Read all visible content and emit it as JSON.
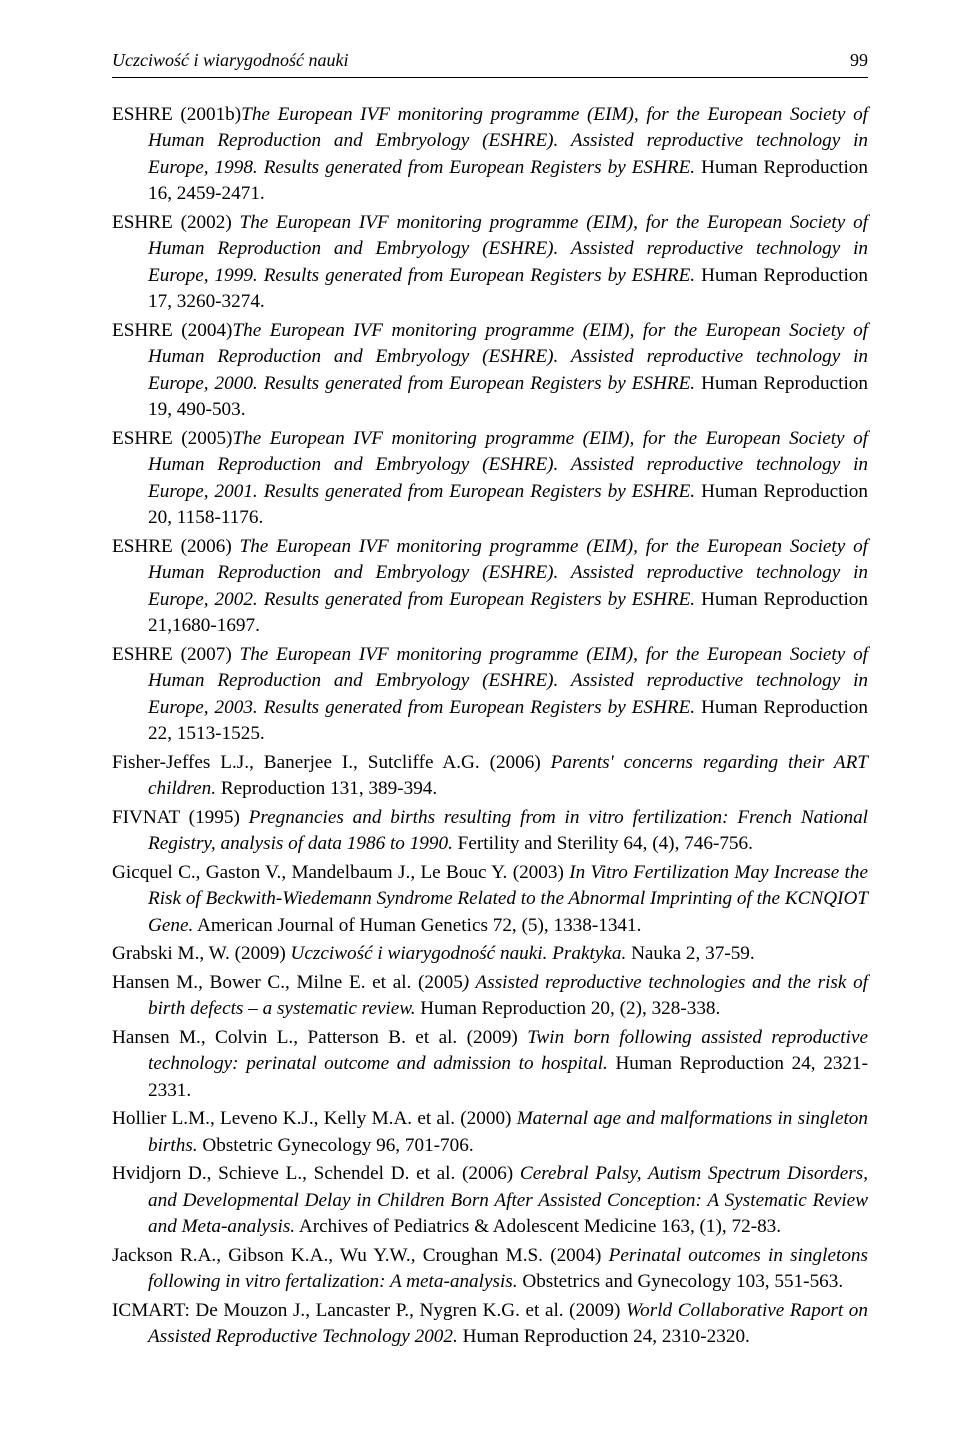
{
  "header": {
    "running_title": "Uczciwość i wiarygodność nauki",
    "page_number": "99"
  },
  "references": [
    {
      "html": "ESHRE (2001b)<span class='it'>The European IVF monitoring programme (EIM), for the European Society of Human Reproduction and Embryology (ESHRE). Assisted reproductive technology in Europe, 1998. Results generated from European Registers by ESHRE.</span> Human Reproduction 16, 2459-2471."
    },
    {
      "html": "ESHRE (2002) <span class='it'>The European IVF monitoring programme (EIM), for the European Society of Human Reproduction and Embryology (ESHRE). Assisted reproductive technology in Europe, 1999. Results generated from European Registers by ESHRE.</span> Human Reproduction 17, 3260-3274."
    },
    {
      "html": "ESHRE (2004)<span class='it'>The European IVF monitoring programme (EIM), for the European Society of Human Reproduction and Embryology (ESHRE). Assisted reproductive technology in Europe, 2000. Results generated from European Registers by ESHRE.</span> Human Reproduction 19, 490-503."
    },
    {
      "html": "ESHRE (2005)<span class='it'>The European IVF monitoring programme (EIM), for the European Society of Human Reproduction and Embryology (ESHRE). Assisted reproductive technology in Europe, 2001. Results generated from European Registers by ESHRE.</span> Human Reproduction 20, 1158-1176."
    },
    {
      "html": "ESHRE (2006) <span class='it'>The European IVF monitoring programme (EIM), for the European Society of Human Reproduction and Embryology (ESHRE). Assisted reproductive technology in Europe, 2002. Results generated from European Registers by ESHRE.</span> Human Reproduction 21,1680-1697."
    },
    {
      "html": "ESHRE (2007) <span class='it'>The European IVF monitoring programme (EIM), for the European Society of Human Reproduction and Embryology (ESHRE). Assisted reproductive technology in Europe, 2003. Results generated from European Registers by ESHRE.</span> Human Reproduction 22, 1513-1525."
    },
    {
      "html": "Fisher-Jeffes L.J., Banerjee I., Sutcliffe A.G. (2006) <span class='it'>Parents' concerns regarding their ART children.</span> Reproduction 131, 389-394."
    },
    {
      "html": "FIVNAT (1995) <span class='it'>Pregnancies and births resulting from in vitro fertilization: French National Registry, analysis of data 1986 to 1990.</span> Fertility and Sterility 64, (4), 746-756."
    },
    {
      "html": "Gicquel C., Gaston V., Mandelbaum J., Le Bouc Y. (2003) <span class='it'>In Vitro Fertilization May Increase the Risk of Beckwith-Wiedemann Syndrome Related to the Abnormal Imprinting of the KCNQIOT Gene.</span> American Journal of Human Genetics 72, (5), 1338-1341."
    },
    {
      "html": "Grabski M., W. (2009) <span class='it'>Uczciwość i wiarygodność nauki. Praktyka.</span> Nauka 2, 37-59."
    },
    {
      "html": "Hansen M., Bower C., Milne E. et al. (2005<span class='it'>) Assisted reproductive technologies and the risk of birth defects – a systematic review.</span> Human Reproduction 20, (2), 328-338."
    },
    {
      "html": "Hansen M., Colvin L., Patterson B. et al. (2009) <span class='it'>Twin born following assisted reproductive technology: perinatal outcome and admission to hospital.</span> Human Reproduction 24, 2321-2331."
    },
    {
      "html": "Hollier L.M., Leveno K.J., Kelly M.A. et al. (2000) <span class='it'>Maternal age and malformations in singleton births.</span> Obstetric Gynecology 96, 701-706."
    },
    {
      "html": "Hvidjorn D., Schieve L., Schendel D. et al. (2006) <span class='it'>Cerebral Palsy, Autism Spectrum Disorders, and Developmental Delay in Children Born After Assisted Conception: A Systematic Review and Meta-analysis.</span> Archives of Pediatrics & Adolescent Medicine 163, (1), 72-83."
    },
    {
      "html": "Jackson R.A., Gibson K.A., Wu Y.W., Croughan M.S. (2004) <span class='it'>Perinatal outcomes in singletons following in vitro fertalization: A meta-analysis.</span> Obstetrics and Gynecology 103, 551-563."
    },
    {
      "html": "ICMART: De Mouzon J., Lancaster P., Nygren K.G. et al.  (2009) <span class='it'>World Collaborative Raport on Assisted Reproductive Technology 2002.</span> Human Reproduction 24, 2310-2320."
    }
  ]
}
